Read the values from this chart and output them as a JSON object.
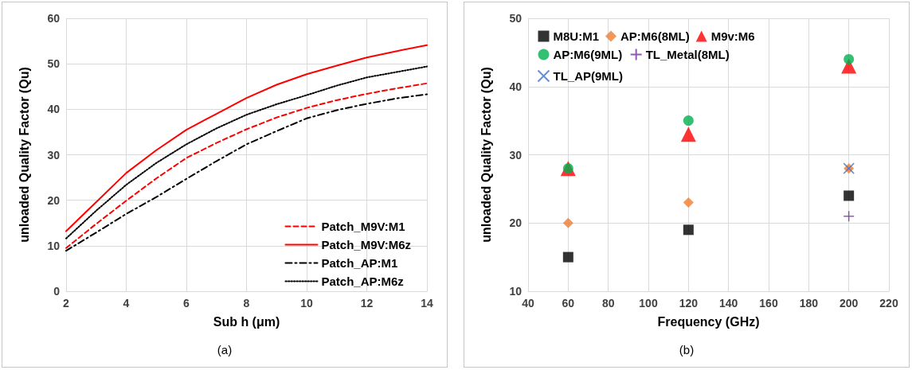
{
  "chart_data": [
    {
      "type": "line",
      "xlabel": "Sub h (μm)",
      "ylabel": "unloaded Quality Factor (Qu)",
      "annotations": [
        "(a)"
      ],
      "x": [
        2,
        3,
        4,
        5,
        6,
        7,
        8,
        9,
        10,
        11,
        12,
        13,
        14
      ],
      "xlim": [
        2,
        14
      ],
      "xticks": [
        2,
        4,
        6,
        8,
        10,
        12,
        14
      ],
      "ylim": [
        0,
        60
      ],
      "yticks": [
        0,
        10,
        20,
        30,
        40,
        50,
        60
      ],
      "grid": true,
      "legend": "bottom right",
      "marker": "none",
      "series": [
        {
          "name": "Patch_M9V:M1",
          "color": "#ff0000",
          "line_style": "dashed",
          "values": [
            9.5,
            14.8,
            19.9,
            24.8,
            29.3,
            32.6,
            35.6,
            38.2,
            40.3,
            42,
            43.4,
            44.6,
            45.7
          ]
        },
        {
          "name": "Patch_M9V:M6z",
          "color": "#ff0000",
          "line_style": "solid",
          "values": [
            13.2,
            19.6,
            26,
            31,
            35.5,
            39,
            42.5,
            45.4,
            47.7,
            49.6,
            51.4,
            52.8,
            54.1
          ]
        },
        {
          "name": "Patch_AP:M1",
          "color": "#000000",
          "line_style": "dashdot",
          "values": [
            8.9,
            12.9,
            17,
            20.7,
            24.7,
            28.6,
            32.3,
            35.2,
            38,
            39.8,
            41.2,
            42.4,
            43.3
          ]
        },
        {
          "name": "Patch_AP:M6z",
          "color": "#000000",
          "line_style": "dotted",
          "values": [
            11.6,
            17.7,
            23.4,
            28.2,
            32.3,
            35.8,
            38.8,
            41.1,
            43.1,
            45.2,
            47,
            48.2,
            49.4
          ]
        }
      ]
    },
    {
      "type": "scatter",
      "xlabel": "Frequency (GHz)",
      "ylabel": "unloaded Quality Factor (Qu)",
      "annotations": [
        "(b)"
      ],
      "xlim": [
        40,
        220
      ],
      "xticks": [
        40,
        60,
        80,
        100,
        120,
        140,
        160,
        180,
        200,
        220
      ],
      "ylim": [
        10,
        50
      ],
      "yticks": [
        10,
        20,
        30,
        40,
        50
      ],
      "grid": true,
      "legend": "top left",
      "series": [
        {
          "name": "M8U:M1",
          "color": "#000000",
          "marker": "square",
          "x": [
            60,
            120,
            200
          ],
          "values": [
            15,
            19,
            24
          ]
        },
        {
          "name": "AP:M6(8ML)",
          "color": "#ed7d31",
          "marker": "diamond",
          "x": [
            60,
            120,
            200
          ],
          "values": [
            20,
            23,
            28
          ]
        },
        {
          "name": "M9v:M6",
          "color": "#ff0000",
          "marker": "triangle",
          "x": [
            60,
            120,
            200
          ],
          "values": [
            28,
            33,
            43
          ]
        },
        {
          "name": "AP:M6(9ML)",
          "color": "#00b050",
          "marker": "circle",
          "x": [
            60,
            120,
            200
          ],
          "values": [
            28,
            35,
            44
          ]
        },
        {
          "name": "TL_Metal(8ML)",
          "color": "#7030a0",
          "marker": "plus",
          "x": [
            200
          ],
          "values": [
            21
          ]
        },
        {
          "name": "TL_AP(9ML)",
          "color": "#4472c4",
          "marker": "cross",
          "x": [
            200
          ],
          "values": [
            28
          ]
        }
      ]
    }
  ]
}
